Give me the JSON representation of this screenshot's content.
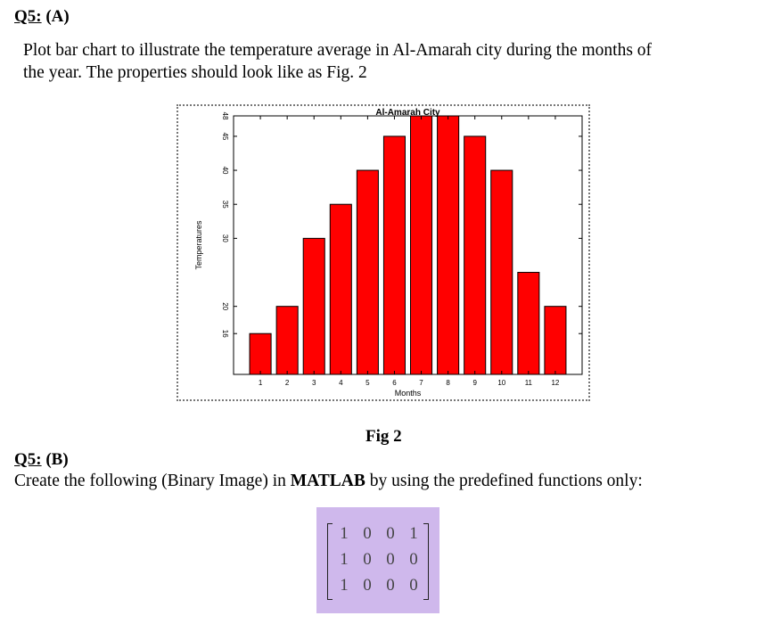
{
  "q5a": {
    "number": "Q5:",
    "part": "(A)",
    "text": "Plot bar chart to illustrate the temperature average in Al-Amarah city during the months of the year. The properties should look like as Fig. 2",
    "line1": "Plot bar chart to illustrate the temperature average in Al-Amarah city during the months of",
    "line2": "the year. The properties should look like as Fig. 2"
  },
  "figure": {
    "caption": "Fig 2"
  },
  "q5b": {
    "number": "Q5:",
    "part": "(B)",
    "text_before": "Create the following (Binary Image) in ",
    "text_bold": "MATLAB",
    "text_after": " by using the predefined functions only:",
    "matrix": [
      [
        "1",
        "0",
        "0",
        "1"
      ],
      [
        "1",
        "0",
        "0",
        "0"
      ],
      [
        "1",
        "0",
        "0",
        "0"
      ]
    ],
    "matrix_bg_color": "#cfb8ec"
  },
  "chart_data": {
    "type": "bar",
    "title": "Al-Amarah City",
    "xlabel": "Months",
    "ylabel": "Temperatures",
    "categories": [
      "1",
      "2",
      "3",
      "4",
      "5",
      "6",
      "7",
      "8",
      "9",
      "10",
      "11",
      "12"
    ],
    "values": [
      16,
      20,
      30,
      35,
      40,
      45,
      48,
      48,
      45,
      40,
      25,
      20
    ],
    "yticks": [
      16,
      20,
      30,
      35,
      40,
      45,
      48
    ],
    "ylim": [
      10,
      48
    ],
    "bar_color": "#ff0000",
    "bar_edge_color": "#000000",
    "grid": false,
    "legend": "none"
  }
}
